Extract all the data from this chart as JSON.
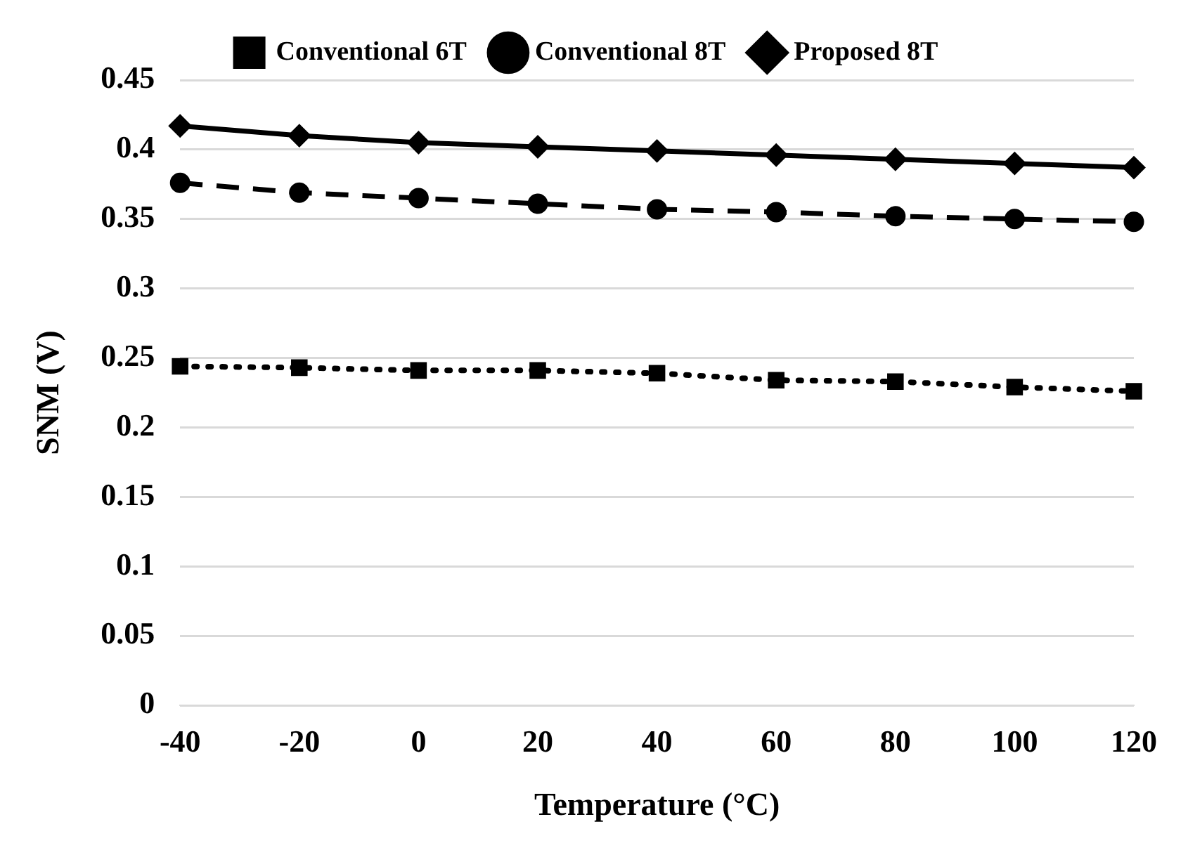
{
  "chart_data": {
    "type": "line",
    "xlabel": "Temperature (°C)",
    "ylabel": "SNM (V)",
    "categories": [
      "-40",
      "-20",
      "0",
      "20",
      "40",
      "60",
      "80",
      "100",
      "120"
    ],
    "series": [
      {
        "name": "Conventional 6T",
        "color": "#000000",
        "marker": "square",
        "line_style": "dotted",
        "values": [
          0.244,
          0.243,
          0.241,
          0.241,
          0.239,
          0.234,
          0.233,
          0.229,
          0.226
        ]
      },
      {
        "name": "Conventional 8T",
        "color": "#000000",
        "marker": "circle",
        "line_style": "dashed",
        "values": [
          0.376,
          0.369,
          0.365,
          0.361,
          0.357,
          0.355,
          0.352,
          0.35,
          0.348
        ]
      },
      {
        "name": "Proposed 8T",
        "color": "#000000",
        "marker": "diamond",
        "line_style": "solid",
        "values": [
          0.417,
          0.41,
          0.405,
          0.402,
          0.399,
          0.396,
          0.393,
          0.39,
          0.387
        ]
      }
    ],
    "ylim": [
      0,
      0.45
    ],
    "yticks": [
      0,
      0.05,
      0.1,
      0.15,
      0.2,
      0.25,
      0.3,
      0.35,
      0.4,
      0.45
    ],
    "grid": "y",
    "legend": "top"
  }
}
